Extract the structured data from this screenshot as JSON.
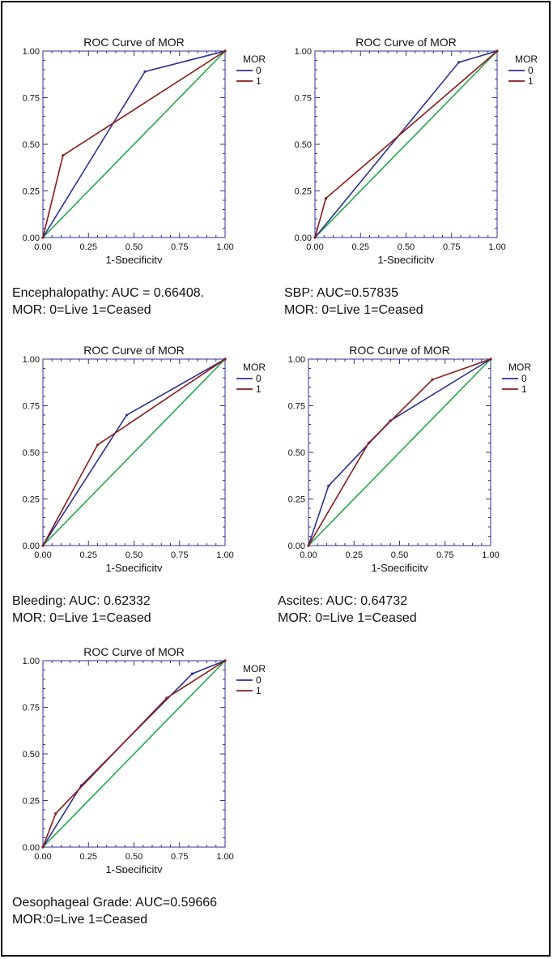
{
  "chart_data": [
    {
      "type": "line",
      "title": "ROC Curve of MOR",
      "xlabel": "1-Specificity",
      "ylabel": "",
      "xlim": [
        0,
        1
      ],
      "ylim": [
        0,
        1
      ],
      "xticks": [
        "0.00",
        "0.25",
        "0.50",
        "0.75",
        "1.00"
      ],
      "yticks": [
        "0.00",
        "0.25",
        "0.50",
        "0.75",
        "1.00"
      ],
      "legend_title": "MOR",
      "legend_position": "right",
      "series": [
        {
          "name": "0",
          "color": "#2e3192",
          "x": [
            0,
            0.56,
            1
          ],
          "y": [
            0,
            0.89,
            1
          ]
        },
        {
          "name": "1",
          "color": "#8b1a1a",
          "x": [
            0,
            0.11,
            1
          ],
          "y": [
            0,
            0.44,
            1
          ]
        }
      ],
      "reference": {
        "color": "#22a84a",
        "x": [
          0,
          1
        ],
        "y": [
          0,
          1
        ]
      },
      "caption": [
        "Encephalopathy: AUC = 0.66408.",
        "MOR: 0=Live 1=Ceased"
      ]
    },
    {
      "type": "line",
      "title": "ROC Curve of MOR",
      "xlabel": "1-Specificity",
      "ylabel": "",
      "xlim": [
        0,
        1
      ],
      "ylim": [
        0,
        1
      ],
      "xticks": [
        "0.00",
        "0.25",
        "0.50",
        "0.75",
        "1.00"
      ],
      "yticks": [
        "0.00",
        "0.25",
        "0.50",
        "0.75",
        "1.00"
      ],
      "legend_title": "MOR",
      "legend_position": "right",
      "series": [
        {
          "name": "0",
          "color": "#2e3192",
          "x": [
            0,
            0.79,
            1
          ],
          "y": [
            0,
            0.94,
            1
          ]
        },
        {
          "name": "1",
          "color": "#8b1a1a",
          "x": [
            0,
            0.06,
            1
          ],
          "y": [
            0,
            0.21,
            1
          ]
        }
      ],
      "reference": {
        "color": "#22a84a",
        "x": [
          0,
          1
        ],
        "y": [
          0,
          1
        ]
      },
      "caption": [
        "SBP: AUC=0.57835",
        "MOR: 0=Live 1=Ceased"
      ]
    },
    {
      "type": "line",
      "title": "ROC Curve of MOR",
      "xlabel": "1-Specificity",
      "ylabel": "",
      "xlim": [
        0,
        1
      ],
      "ylim": [
        0,
        1
      ],
      "xticks": [
        "0.00",
        "0.25",
        "0.50",
        "0.75",
        "1.00"
      ],
      "yticks": [
        "0.00",
        "0.25",
        "0.50",
        "0.75",
        "1.00"
      ],
      "legend_title": "MOR",
      "legend_position": "right",
      "series": [
        {
          "name": "0",
          "color": "#2e3192",
          "x": [
            0,
            0.46,
            1
          ],
          "y": [
            0,
            0.7,
            1
          ]
        },
        {
          "name": "1",
          "color": "#8b1a1a",
          "x": [
            0,
            0.3,
            1
          ],
          "y": [
            0,
            0.54,
            1
          ]
        }
      ],
      "reference": {
        "color": "#22a84a",
        "x": [
          0,
          1
        ],
        "y": [
          0,
          1
        ]
      },
      "caption": [
        "Bleeding: AUC: 0.62332",
        "MOR: 0=Live 1=Ceased"
      ]
    },
    {
      "type": "line",
      "title": "ROC Curve of MOR",
      "xlabel": "1-Specificity",
      "ylabel": "",
      "xlim": [
        0,
        1
      ],
      "ylim": [
        0,
        1
      ],
      "xticks": [
        "0.00",
        "0.25",
        "0.50",
        "0.75",
        "1.00"
      ],
      "yticks": [
        "0.00",
        "0.25",
        "0.50",
        "0.75",
        "1.00"
      ],
      "legend_title": "MOR",
      "legend_position": "right",
      "series": [
        {
          "name": "0",
          "color": "#2e3192",
          "x": [
            0,
            0.11,
            0.45,
            1
          ],
          "y": [
            0,
            0.32,
            0.67,
            1
          ]
        },
        {
          "name": "1",
          "color": "#8b1a1a",
          "x": [
            0,
            0.33,
            0.68,
            1
          ],
          "y": [
            0,
            0.55,
            0.89,
            1
          ]
        }
      ],
      "reference": {
        "color": "#22a84a",
        "x": [
          0,
          1
        ],
        "y": [
          0,
          1
        ]
      },
      "caption": [
        "Ascites: AUC: 0.64732",
        "MOR: 0=Live 1=Ceased"
      ]
    },
    {
      "type": "line",
      "title": "ROC Curve of MOR",
      "xlabel": "1-Specificity",
      "ylabel": "",
      "xlim": [
        0,
        1
      ],
      "ylim": [
        0,
        1
      ],
      "xticks": [
        "0.00",
        "0.25",
        "0.50",
        "0.75",
        "1.00"
      ],
      "yticks": [
        "0.00",
        "0.25",
        "0.50",
        "0.75",
        "1.00"
      ],
      "legend_title": "MOR",
      "legend_position": "right",
      "series": [
        {
          "name": "0",
          "color": "#2e3192",
          "x": [
            0,
            0.21,
            0.82,
            1
          ],
          "y": [
            0,
            0.33,
            0.93,
            1
          ]
        },
        {
          "name": "1",
          "color": "#8b1a1a",
          "x": [
            0,
            0.07,
            0.68,
            1
          ],
          "y": [
            0,
            0.18,
            0.8,
            1
          ]
        }
      ],
      "reference": {
        "color": "#22a84a",
        "x": [
          0,
          1
        ],
        "y": [
          0,
          1
        ]
      },
      "caption": [
        "Oesophageal Grade: AUC=0.59666",
        "MOR:0=Live 1=Ceased"
      ]
    }
  ]
}
